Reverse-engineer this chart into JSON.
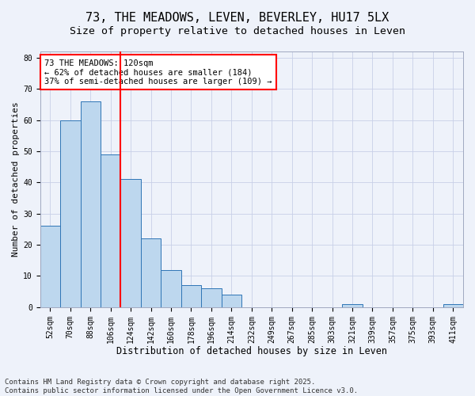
{
  "title": "73, THE MEADOWS, LEVEN, BEVERLEY, HU17 5LX",
  "subtitle": "Size of property relative to detached houses in Leven",
  "xlabel": "Distribution of detached houses by size in Leven",
  "ylabel": "Number of detached properties",
  "categories": [
    "52sqm",
    "70sqm",
    "88sqm",
    "106sqm",
    "124sqm",
    "142sqm",
    "160sqm",
    "178sqm",
    "196sqm",
    "214sqm",
    "232sqm",
    "249sqm",
    "267sqm",
    "285sqm",
    "303sqm",
    "321sqm",
    "339sqm",
    "357sqm",
    "375sqm",
    "393sqm",
    "411sqm"
  ],
  "values": [
    26,
    60,
    66,
    49,
    41,
    22,
    12,
    7,
    6,
    4,
    0,
    0,
    0,
    0,
    0,
    1,
    0,
    0,
    0,
    0,
    1
  ],
  "bar_color": "#BDD7EE",
  "bar_edge_color": "#2E75B6",
  "vline_x": 3.5,
  "vline_color": "red",
  "annotation_text": "73 THE MEADOWS: 120sqm\n← 62% of detached houses are smaller (184)\n37% of semi-detached houses are larger (109) →",
  "annotation_box_color": "white",
  "annotation_box_edge_color": "red",
  "ylim": [
    0,
    82
  ],
  "yticks": [
    0,
    10,
    20,
    30,
    40,
    50,
    60,
    70,
    80
  ],
  "background_color": "#EEF2FA",
  "grid_color": "#C8D0E8",
  "footer": "Contains HM Land Registry data © Crown copyright and database right 2025.\nContains public sector information licensed under the Open Government Licence v3.0.",
  "title_fontsize": 11,
  "subtitle_fontsize": 9.5,
  "xlabel_fontsize": 8.5,
  "ylabel_fontsize": 8,
  "tick_fontsize": 7,
  "annotation_fontsize": 7.5,
  "footer_fontsize": 6.5
}
